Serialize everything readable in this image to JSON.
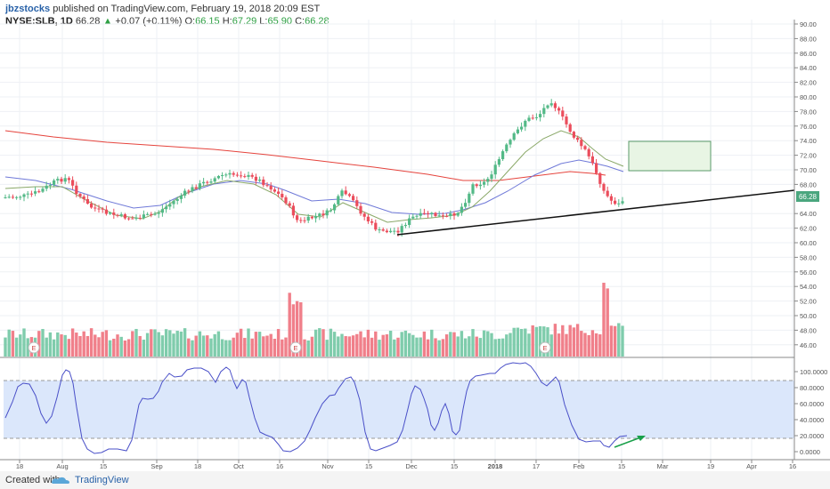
{
  "header": {
    "author": "jbzstocks",
    "published": "published on TradingView.com, February 19, 2018 20:09 EST",
    "symbol": "NYSE:SLB, 1D",
    "last": "66.28",
    "change_arrow": "▲",
    "change": "+0.07 (+0.11%)",
    "open_label": "O:",
    "open": "66.15",
    "high_label": "H:",
    "high": "67.29",
    "low_label": "L:",
    "low": "65.90",
    "close_label": "C:",
    "close": "66.28"
  },
  "price_axis": {
    "ticks": [
      "90.00",
      "88.00",
      "86.00",
      "84.00",
      "82.00",
      "80.00",
      "78.00",
      "76.00",
      "74.00",
      "72.00",
      "70.00",
      "68.00",
      "64.00",
      "62.00",
      "60.00",
      "58.00",
      "56.00",
      "54.00",
      "52.00",
      "50.00",
      "48.00",
      "46.00"
    ],
    "last_price_label": "66.28"
  },
  "osc_axis": {
    "ticks": [
      "100.0000",
      "80.0000",
      "60.0000",
      "40.0000",
      "20.0000",
      "0.0000"
    ]
  },
  "time_axis": {
    "ticks": [
      "18",
      "Aug",
      "15",
      "Sep",
      "18",
      "Oct",
      "16",
      "Nov",
      "15",
      "Dec",
      "15",
      "2018",
      "17",
      "Feb",
      "15",
      "Mar",
      "19",
      "Apr",
      "16"
    ]
  },
  "earnings_marker": "E",
  "footer": {
    "created": "Created with",
    "brand": "TradingView"
  },
  "colors": {
    "up": "#53b987",
    "down": "#eb4d5c",
    "vol_up": "#7fccac",
    "vol_down": "#f07f8a",
    "ma_long": "#e5433c",
    "ma_mid": "#6f79d8",
    "ma_short": "#8aa868",
    "stoch": "#4a50c8",
    "stoch_band": "#dbe7fb",
    "trendline": "#111111",
    "arrow": "#19a04a",
    "box_fill": "#e8f5e4",
    "box_stroke": "#5a9a6a"
  }
}
